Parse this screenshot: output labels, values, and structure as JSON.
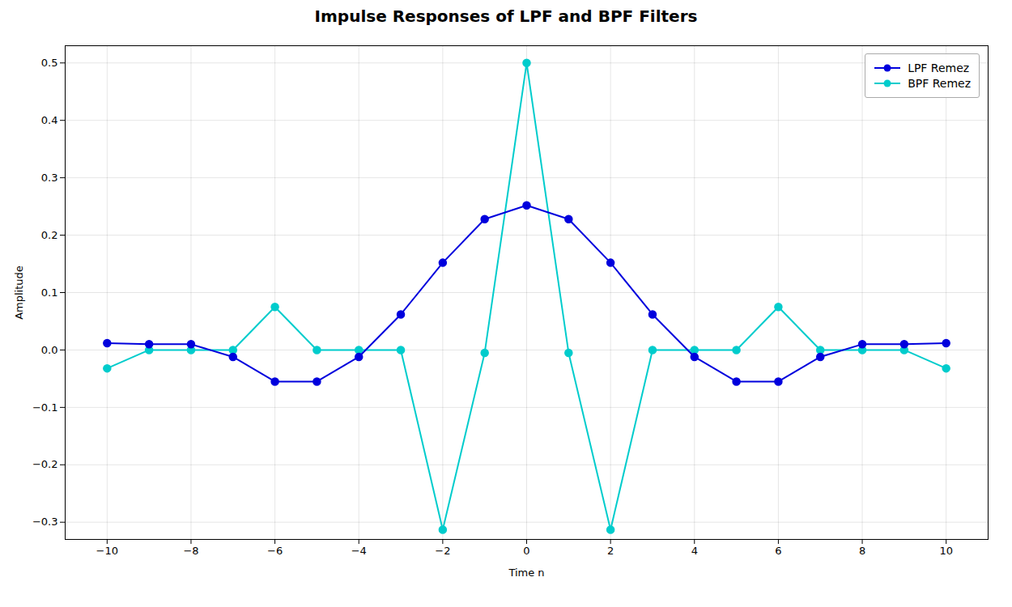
{
  "chart_data": {
    "type": "line",
    "title": "Impulse Responses of LPF and BPF Filters",
    "xlabel": "Time n",
    "ylabel": "Amplitude",
    "xlim": [
      -11,
      11
    ],
    "ylim": [
      -0.33,
      0.53
    ],
    "xticks": [
      -10,
      -8,
      -6,
      -4,
      -2,
      0,
      2,
      4,
      6,
      8,
      10
    ],
    "yticks": [
      -0.3,
      -0.2,
      -0.1,
      {
        "value": 0,
        "label": "0.0"
      },
      0.1,
      0.2,
      0.3,
      0.4,
      0.5
    ],
    "grid": true,
    "legend": "upper right",
    "x": [
      -10,
      -9,
      -8,
      -7,
      -6,
      -5,
      -4,
      -3,
      -2,
      -1,
      0,
      1,
      2,
      3,
      4,
      5,
      6,
      7,
      8,
      9,
      10
    ],
    "series": [
      {
        "name": "LPF Remez",
        "color": "#0000dd",
        "marker": "circle",
        "line_style": "solid",
        "values": [
          0.012,
          0.01,
          0.01,
          -0.012,
          -0.055,
          -0.055,
          -0.012,
          0.062,
          0.152,
          0.228,
          0.252,
          0.228,
          0.152,
          0.062,
          -0.012,
          -0.055,
          -0.055,
          -0.012,
          0.01,
          0.01,
          0.012
        ]
      },
      {
        "name": "BPF Remez",
        "color": "#00cccc",
        "marker": "circle",
        "line_style": "solid",
        "values": [
          -0.032,
          0.0,
          0.0,
          0.0,
          0.075,
          0.0,
          0.0,
          0.0,
          -0.313,
          -0.005,
          0.5,
          -0.005,
          -0.313,
          0.0,
          0.0,
          0.0,
          0.075,
          0.0,
          0.0,
          0.0,
          -0.032
        ]
      }
    ]
  }
}
